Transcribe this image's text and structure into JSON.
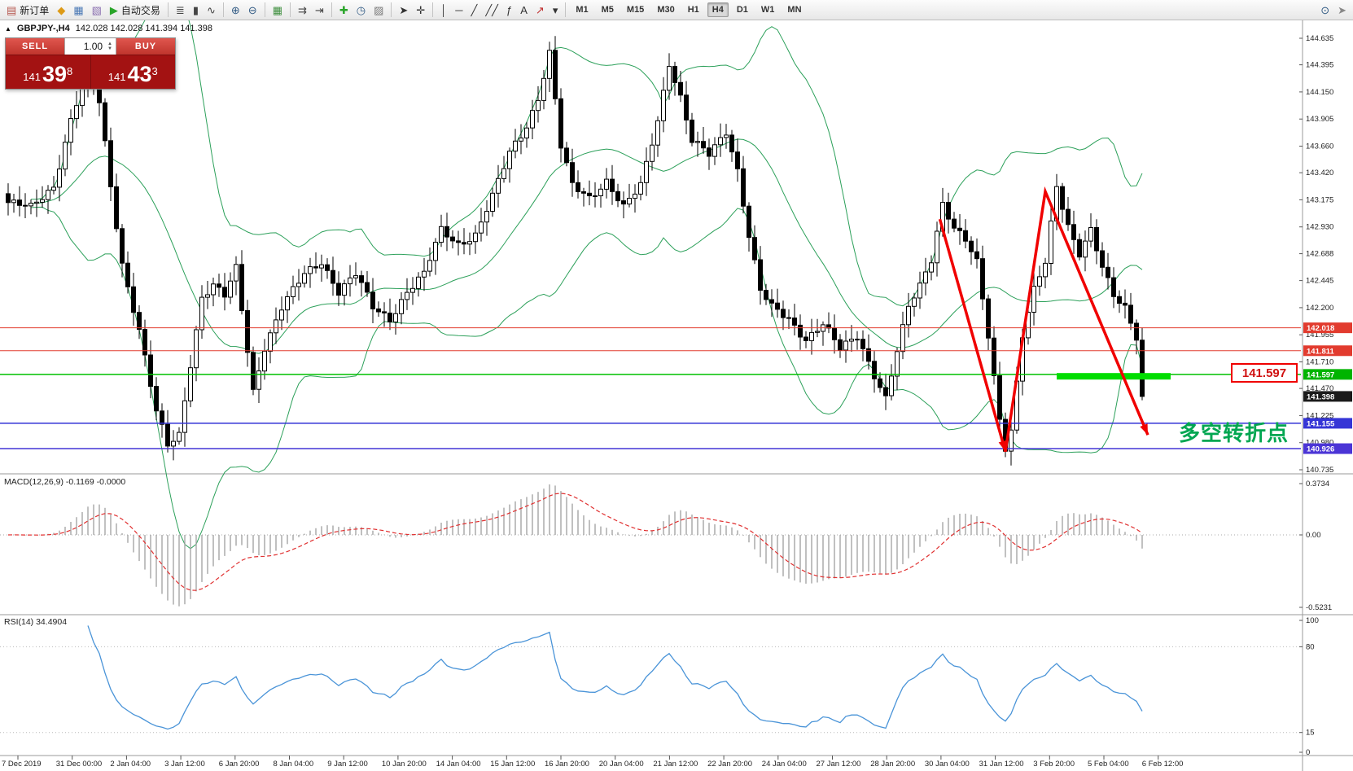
{
  "toolbar": {
    "new_order": {
      "name": "new-order-button",
      "icon": "new-order-icon",
      "glyph": "▤",
      "color": "#b5534a",
      "label": "新订单"
    },
    "icons_1": [
      {
        "name": "metaeditor-icon",
        "glyph": "◆",
        "color": "#dd9a16"
      },
      {
        "name": "market-watch-icon",
        "glyph": "▦",
        "color": "#4a78b5"
      },
      {
        "name": "navigator-icon",
        "glyph": "▧",
        "color": "#8a6fb0"
      }
    ],
    "auto_trading": {
      "name": "auto-trading-button",
      "icon": "auto-trading-icon",
      "glyph": "▶",
      "color": "#2aa52a",
      "label": "自动交易"
    },
    "chart_type_icons": [
      {
        "name": "bar-chart-icon",
        "glyph": "≣",
        "color": "#444"
      },
      {
        "name": "candlestick-icon",
        "glyph": "▮",
        "color": "#444"
      },
      {
        "name": "line-chart-icon",
        "glyph": "∿",
        "color": "#444"
      }
    ],
    "zoom_icons": [
      {
        "name": "zoom-in-icon",
        "glyph": "⊕",
        "color": "#335c85"
      },
      {
        "name": "zoom-out-icon",
        "glyph": "⊖",
        "color": "#335c85"
      }
    ],
    "layout_icons": [
      {
        "name": "tile-windows-icon",
        "glyph": "▦",
        "color": "#3f8f3f"
      }
    ],
    "scroll_icons": [
      {
        "name": "auto-scroll-icon",
        "glyph": "⇉",
        "color": "#444"
      },
      {
        "name": "chart-shift-icon",
        "glyph": "⇥",
        "color": "#444"
      }
    ],
    "insert_icons": [
      {
        "name": "indicators-add-icon",
        "glyph": "✚",
        "color": "#2aa52a"
      },
      {
        "name": "periods-icon",
        "glyph": "◷",
        "color": "#335c85"
      },
      {
        "name": "templates-icon",
        "glyph": "▨",
        "color": "#777"
      }
    ],
    "cursor_icons": [
      {
        "name": "cursor-icon",
        "glyph": "➤",
        "color": "#333"
      },
      {
        "name": "crosshair-icon",
        "glyph": "✛",
        "color": "#333"
      }
    ],
    "draw_icons": [
      {
        "name": "vertical-line-icon",
        "glyph": "│",
        "color": "#333"
      },
      {
        "name": "horizontal-line-icon",
        "glyph": "─",
        "color": "#333"
      },
      {
        "name": "trendline-icon",
        "glyph": "╱",
        "color": "#333"
      },
      {
        "name": "channel-icon",
        "glyph": "╱╱",
        "color": "#333"
      },
      {
        "name": "fibonacci-icon",
        "glyph": "ƒ",
        "color": "#333"
      },
      {
        "name": "text-icon",
        "glyph": "A",
        "color": "#333"
      },
      {
        "name": "arrows-icon",
        "glyph": "↗",
        "color": "#c03030"
      },
      {
        "name": "shapes-dropdown-icon",
        "glyph": "▾",
        "color": "#333"
      }
    ],
    "timeframes": [
      "M1",
      "M5",
      "M15",
      "M30",
      "H1",
      "H4",
      "D1",
      "W1",
      "MN"
    ],
    "active_timeframe": "H4",
    "right_icons": [
      {
        "name": "search-icon",
        "glyph": "⊙",
        "color": "#335c85"
      },
      {
        "name": "pointer-icon",
        "glyph": "➤",
        "color": "#888"
      }
    ]
  },
  "trade_panel": {
    "sell_label": "SELL",
    "buy_label": "BUY",
    "volume": "1.00",
    "sell_price": {
      "prefix": "141",
      "big": "39",
      "sup": "8"
    },
    "buy_price": {
      "prefix": "141",
      "big": "43",
      "sup": "3"
    }
  },
  "chart": {
    "title": "GBPJPY-,H4",
    "ohlc": "142.028 142.028 141.394 141.398",
    "price_axis": [
      "144.635",
      "144.395",
      "144.150",
      "143.905",
      "143.660",
      "143.420",
      "143.175",
      "142.930",
      "142.688",
      "142.445",
      "142.200",
      "141.955",
      "141.710",
      "141.470",
      "141.225",
      "140.980",
      "140.735"
    ],
    "time_axis": [
      "7 Dec 2019",
      "31 Dec 00:00",
      "2 Jan 04:00",
      "3 Jan 12:00",
      "6 Jan 20:00",
      "8 Jan 04:00",
      "9 Jan 12:00",
      "10 Jan 20:00",
      "14 Jan 04:00",
      "15 Jan 12:00",
      "16 Jan 20:00",
      "20 Jan 04:00",
      "21 Jan 12:00",
      "22 Jan 20:00",
      "24 Jan 04:00",
      "27 Jan 12:00",
      "28 Jan 20:00",
      "30 Jan 04:00",
      "31 Jan 12:00",
      "3 Feb 20:00",
      "5 Feb 04:00",
      "6 Feb 12:00"
    ],
    "lines": [
      {
        "price": 142.018,
        "label": "142.018",
        "color": "#e23b2e",
        "tag_bg": "#e23b2e",
        "width": 1
      },
      {
        "price": 141.811,
        "label": "141.811",
        "color": "#e23b2e",
        "tag_bg": "#e23b2e",
        "width": 1
      },
      {
        "price": 141.597,
        "label": "141.597",
        "color": "#00c000",
        "tag_bg": "#00b400",
        "width": 1.5
      },
      {
        "price": 141.155,
        "label": "141.155",
        "color": "#3535d6",
        "tag_bg": "#3535d6",
        "width": 1.5
      },
      {
        "price": 140.926,
        "label": "140.926",
        "color": "#4335d6",
        "tag_bg": "#4b35d6",
        "width": 1.5
      }
    ],
    "current_price": {
      "value": 141.398,
      "label": "141.398",
      "tag_bg": "#1a1a1a"
    },
    "annotations": {
      "turning_point_text": "多空转折点",
      "price_label_box": "141.597"
    }
  },
  "macd": {
    "label": "MACD(12,26,9) -0.1169 -0.0000",
    "axis": [
      "0.3734",
      "0.00",
      "-0.5231"
    ]
  },
  "rsi": {
    "label": "RSI(14) 34.4904",
    "axis": [
      "100",
      "80",
      "15",
      "0"
    ]
  },
  "chart_data": {
    "type": "candlestick",
    "symbol": "GBPJPY",
    "timeframe": "H4",
    "candle_count": 200,
    "ylim": [
      140.735,
      144.635
    ],
    "macd_ylim": [
      -0.5231,
      0.3734
    ],
    "rsi_ylim": [
      0,
      100
    ],
    "bollinger": {
      "period": 20,
      "deviation": 2
    },
    "macd_params": [
      12,
      26,
      9
    ],
    "rsi_period": 14,
    "colors": {
      "bollinger": "#2ca05a",
      "candle_up": "#ffffff",
      "candle_down": "#000000",
      "macd_hist": "#a6a6a6",
      "macd_signal": "#e03030",
      "rsi_line": "#4a94d8",
      "segment": "#00dd00",
      "arrow": "#f00000"
    },
    "price_waypoints": [
      [
        0,
        143.15
      ],
      [
        4,
        143.1
      ],
      [
        8,
        143.3
      ],
      [
        11,
        143.9
      ],
      [
        14,
        144.35
      ],
      [
        16,
        144.05
      ],
      [
        18,
        143.3
      ],
      [
        20,
        142.6
      ],
      [
        23,
        142.0
      ],
      [
        26,
        141.25
      ],
      [
        28,
        140.95
      ],
      [
        30,
        141.05
      ],
      [
        32,
        141.7
      ],
      [
        34,
        142.3
      ],
      [
        36,
        142.4
      ],
      [
        38,
        142.3
      ],
      [
        40,
        142.55
      ],
      [
        43,
        141.45
      ],
      [
        45,
        141.85
      ],
      [
        48,
        142.2
      ],
      [
        52,
        142.5
      ],
      [
        55,
        142.62
      ],
      [
        58,
        142.35
      ],
      [
        61,
        142.5
      ],
      [
        64,
        142.2
      ],
      [
        67,
        142.1
      ],
      [
        70,
        142.35
      ],
      [
        73,
        142.5
      ],
      [
        76,
        142.9
      ],
      [
        79,
        142.78
      ],
      [
        82,
        142.86
      ],
      [
        85,
        143.2
      ],
      [
        88,
        143.6
      ],
      [
        91,
        143.85
      ],
      [
        93,
        144.1
      ],
      [
        95,
        144.5
      ],
      [
        97,
        143.65
      ],
      [
        99,
        143.3
      ],
      [
        102,
        143.2
      ],
      [
        105,
        143.35
      ],
      [
        108,
        143.1
      ],
      [
        111,
        143.3
      ],
      [
        114,
        143.9
      ],
      [
        116,
        144.42
      ],
      [
        118,
        144.1
      ],
      [
        120,
        143.7
      ],
      [
        123,
        143.58
      ],
      [
        126,
        143.8
      ],
      [
        128,
        143.45
      ],
      [
        130,
        142.85
      ],
      [
        132,
        142.35
      ],
      [
        134,
        142.2
      ],
      [
        137,
        142.1
      ],
      [
        140,
        141.92
      ],
      [
        143,
        142.05
      ],
      [
        146,
        141.82
      ],
      [
        149,
        141.95
      ],
      [
        152,
        141.6
      ],
      [
        154,
        141.38
      ],
      [
        156,
        141.8
      ],
      [
        158,
        142.2
      ],
      [
        160,
        142.4
      ],
      [
        162,
        142.65
      ],
      [
        164,
        143.15
      ],
      [
        166,
        142.92
      ],
      [
        168,
        142.8
      ],
      [
        170,
        142.6
      ],
      [
        172,
        141.95
      ],
      [
        174,
        141.2
      ],
      [
        175,
        140.95
      ],
      [
        176,
        141.1
      ],
      [
        178,
        141.95
      ],
      [
        180,
        142.35
      ],
      [
        182,
        142.6
      ],
      [
        184,
        143.3
      ],
      [
        186,
        142.95
      ],
      [
        188,
        142.7
      ],
      [
        190,
        142.9
      ],
      [
        192,
        142.55
      ],
      [
        194,
        142.3
      ],
      [
        196,
        142.2
      ],
      [
        198,
        141.95
      ],
      [
        199,
        141.398
      ]
    ],
    "red_arrow": [
      [
        163.5,
        143.0
      ],
      [
        175,
        140.9
      ],
      [
        182,
        143.25
      ],
      [
        200,
        141.05
      ]
    ],
    "arrowheads": [
      1,
      3
    ],
    "green_segment": {
      "i1": 184,
      "i2": 204,
      "price": 141.58
    }
  }
}
